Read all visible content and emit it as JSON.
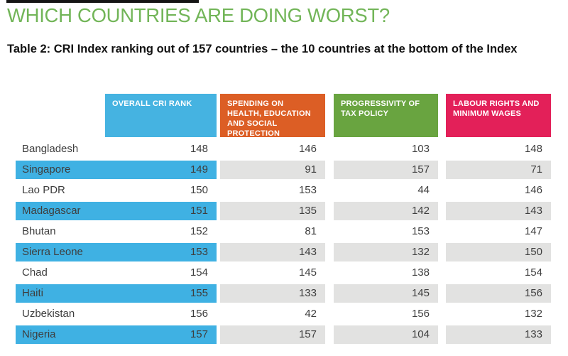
{
  "title": "WHICH COUNTRIES ARE DOING WORST?",
  "subtitle": "Table 2: CRI Index ranking out of 157 countries – the 10 countries at the bottom of the Index",
  "colors": {
    "title_green": "#72b558",
    "top_bar": "#151515",
    "header_blue": "#45b3e1",
    "header_orange": "#dc5e25",
    "header_green": "#69a440",
    "header_pink": "#e32059",
    "row_highlight_blue": "#3fb1e3",
    "cell_gray": "#e2e2e1",
    "text_dark": "#3e3e3e"
  },
  "table": {
    "columns": [
      {
        "key": "overall",
        "label": "OVERALL CRI RANK",
        "color": "#45b3e1"
      },
      {
        "key": "spending",
        "label": "SPENDING ON HEALTH, EDUCATION AND SOCIAL PROTECTION",
        "color": "#dc5e25"
      },
      {
        "key": "tax",
        "label": "PROGRESSIVITY OF TAX POLICY",
        "color": "#69a440"
      },
      {
        "key": "labour",
        "label": "LABOUR RIGHTS AND MINIMUM WAGES",
        "color": "#e32059"
      }
    ],
    "rows": [
      {
        "country": "Bangladesh",
        "overall": 148,
        "spending": 146,
        "tax": 103,
        "labour": 148,
        "highlighted": false
      },
      {
        "country": "Singapore",
        "overall": 149,
        "spending": 91,
        "tax": 157,
        "labour": 71,
        "highlighted": true
      },
      {
        "country": "Lao PDR",
        "overall": 150,
        "spending": 153,
        "tax": 44,
        "labour": 146,
        "highlighted": false
      },
      {
        "country": "Madagascar",
        "overall": 151,
        "spending": 135,
        "tax": 142,
        "labour": 143,
        "highlighted": true
      },
      {
        "country": "Bhutan",
        "overall": 152,
        "spending": 81,
        "tax": 153,
        "labour": 147,
        "highlighted": false
      },
      {
        "country": "Sierra Leone",
        "overall": 153,
        "spending": 143,
        "tax": 132,
        "labour": 150,
        "highlighted": true
      },
      {
        "country": "Chad",
        "overall": 154,
        "spending": 145,
        "tax": 138,
        "labour": 154,
        "highlighted": false
      },
      {
        "country": "Haiti",
        "overall": 155,
        "spending": 133,
        "tax": 145,
        "labour": 156,
        "highlighted": true
      },
      {
        "country": "Uzbekistan",
        "overall": 156,
        "spending": 42,
        "tax": 156,
        "labour": 132,
        "highlighted": false
      },
      {
        "country": "Nigeria",
        "overall": 157,
        "spending": 157,
        "tax": 104,
        "labour": 133,
        "highlighted": true
      }
    ]
  }
}
